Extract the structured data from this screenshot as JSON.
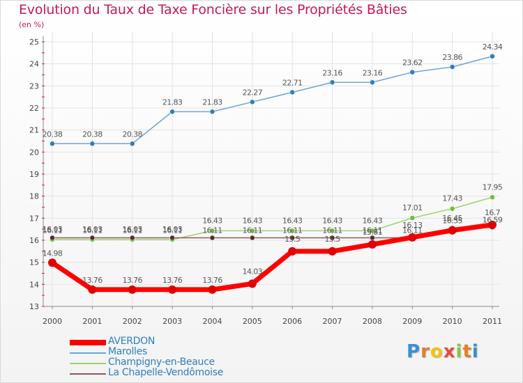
{
  "chart_data": {
    "type": "line",
    "title": "Evolution du Taux de Taxe Foncière sur les Propriétés Bâties",
    "unit_label": "(en %)",
    "x": [
      "2000",
      "2001",
      "2002",
      "2003",
      "2004",
      "2005",
      "2006",
      "2007",
      "2008",
      "2009",
      "2010",
      "2011"
    ],
    "ylim": [
      13,
      25
    ],
    "yticks": [
      13,
      14,
      15,
      16,
      17,
      18,
      19,
      20,
      21,
      22,
      23,
      24,
      25
    ],
    "series": [
      {
        "name": "AVERDON",
        "color": "#ff0000",
        "values": [
          14.98,
          13.76,
          13.76,
          13.76,
          13.76,
          14.03,
          15.5,
          15.5,
          15.81,
          16.13,
          16.45,
          16.7
        ],
        "labels": [
          "14.98",
          "13.76",
          "13.76",
          "13.76",
          "13.76",
          "14.03",
          "15.5",
          "15.5",
          "15.81",
          "16.13",
          "16.45",
          "16.7"
        ]
      },
      {
        "name": "Marolles",
        "color": "#6aa5d8",
        "values": [
          20.38,
          20.38,
          20.38,
          21.83,
          21.83,
          22.27,
          22.71,
          23.16,
          23.16,
          23.62,
          23.86,
          24.34
        ],
        "labels": [
          "20.38",
          "20.38",
          "20.38",
          "21.83",
          "21.83",
          "22.27",
          "22.71",
          "23.16",
          "23.16",
          "23.62",
          "23.86",
          "24.34"
        ]
      },
      {
        "name": "Champigny-en-Beauce",
        "color": "#9ed36a",
        "values": [
          16.03,
          16.03,
          16.03,
          16.03,
          16.43,
          16.43,
          16.43,
          16.43,
          16.43,
          17.01,
          17.43,
          17.95
        ],
        "labels": [
          "16.03",
          "16.03",
          "16.03",
          "16.03",
          "16.43",
          "16.43",
          "16.43",
          "16.43",
          "16.43",
          "17.01",
          "17.43",
          "17.95"
        ]
      },
      {
        "name": "La Chapelle-Vendômoise",
        "color": "#8b5a5a",
        "values": [
          16.11,
          16.11,
          16.11,
          16.11,
          16.11,
          16.11,
          16.11,
          16.11,
          16.11,
          16.11,
          16.55,
          16.59
        ],
        "labels": [
          "16.11",
          "16.11",
          "16.11",
          "16.11",
          "16.11",
          "16.11",
          "16.11",
          "16.11",
          "16.11",
          "16.11",
          "16.55",
          "16.59"
        ]
      }
    ]
  },
  "logo": {
    "text": "Proxiti"
  }
}
